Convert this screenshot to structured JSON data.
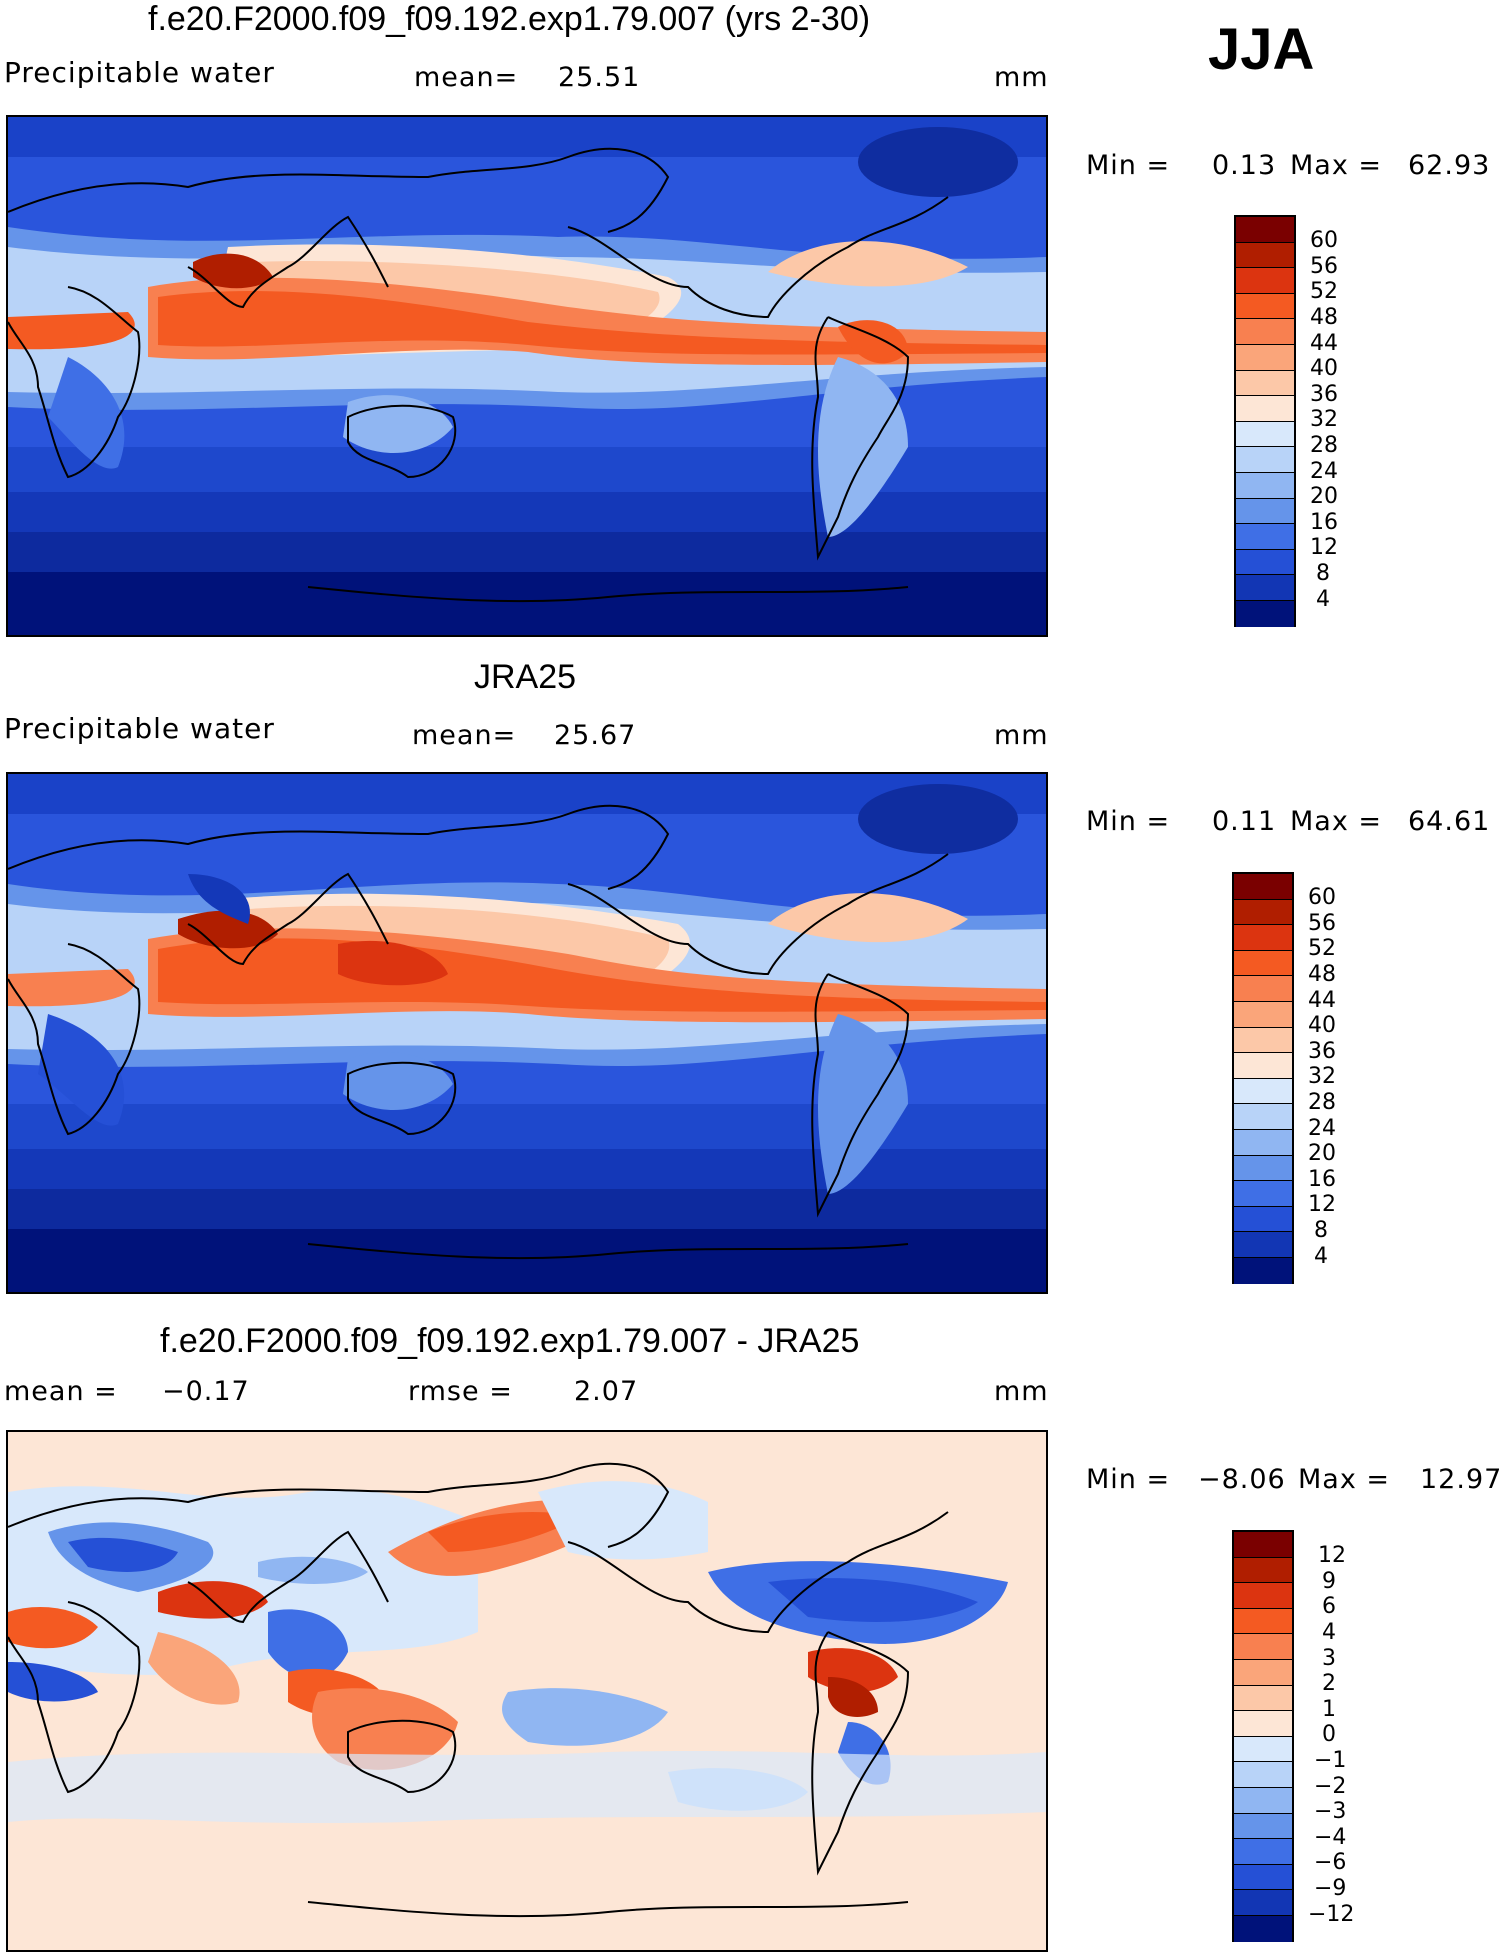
{
  "season": "JJA",
  "panels": [
    {
      "id": "model",
      "title": "f.e20.F2000.f09_f09.192.exp1.79.007 (yrs 2-30)",
      "left_label": "Precipitable water",
      "mean_label": "mean=",
      "mean_value": "25.51",
      "units": "mm",
      "min_label": "Min =",
      "min_value": "0.13",
      "max_label": "Max =",
      "max_value": "62.93",
      "levels": [
        "60",
        "56",
        "52",
        "48",
        "44",
        "40",
        "36",
        "32",
        "28",
        "24",
        "20",
        "16",
        "12",
        "8",
        "4"
      ]
    },
    {
      "id": "obs",
      "title": "JRA25",
      "left_label": "Precipitable water",
      "mean_label": "mean=",
      "mean_value": "25.67",
      "units": "mm",
      "min_label": "Min =",
      "min_value": "0.11",
      "max_label": "Max =",
      "max_value": "64.61",
      "levels": [
        "60",
        "56",
        "52",
        "48",
        "44",
        "40",
        "36",
        "32",
        "28",
        "24",
        "20",
        "16",
        "12",
        "8",
        "4"
      ]
    },
    {
      "id": "diff",
      "title": "f.e20.F2000.f09_f09.192.exp1.79.007 - JRA25",
      "mean_label": "mean =",
      "mean_value": "−0.17",
      "rmse_label": "rmse =",
      "rmse_value": "2.07",
      "units": "mm",
      "min_label": "Min =",
      "min_value": "−8.06",
      "max_label": "Max =",
      "max_value": "12.97",
      "levels": [
        "12",
        "9",
        "6",
        "4",
        "3",
        "2",
        "1",
        "0",
        "−1",
        "−2",
        "−3",
        "−4",
        "−6",
        "−9",
        "−12"
      ]
    }
  ],
  "colors": {
    "abs_scale": [
      "#7a0000",
      "#b01e00",
      "#dc3410",
      "#f45a22",
      "#f88050",
      "#faa57a",
      "#fcc8a8",
      "#fde6d6",
      "#d8e8fb",
      "#b8d3f8",
      "#90b6f2",
      "#6594ea",
      "#3f6fe6",
      "#2550d6",
      "#1236b4",
      "#00127a"
    ],
    "diff_scale": [
      "#7a0000",
      "#b01e00",
      "#dc3410",
      "#f45a22",
      "#f88050",
      "#faa57a",
      "#fcc8a8",
      "#fde6d6",
      "#d8e8fb",
      "#b8d3f8",
      "#90b6f2",
      "#6594ea",
      "#3f6fe6",
      "#2550d6",
      "#1236b4",
      "#00127a"
    ]
  }
}
